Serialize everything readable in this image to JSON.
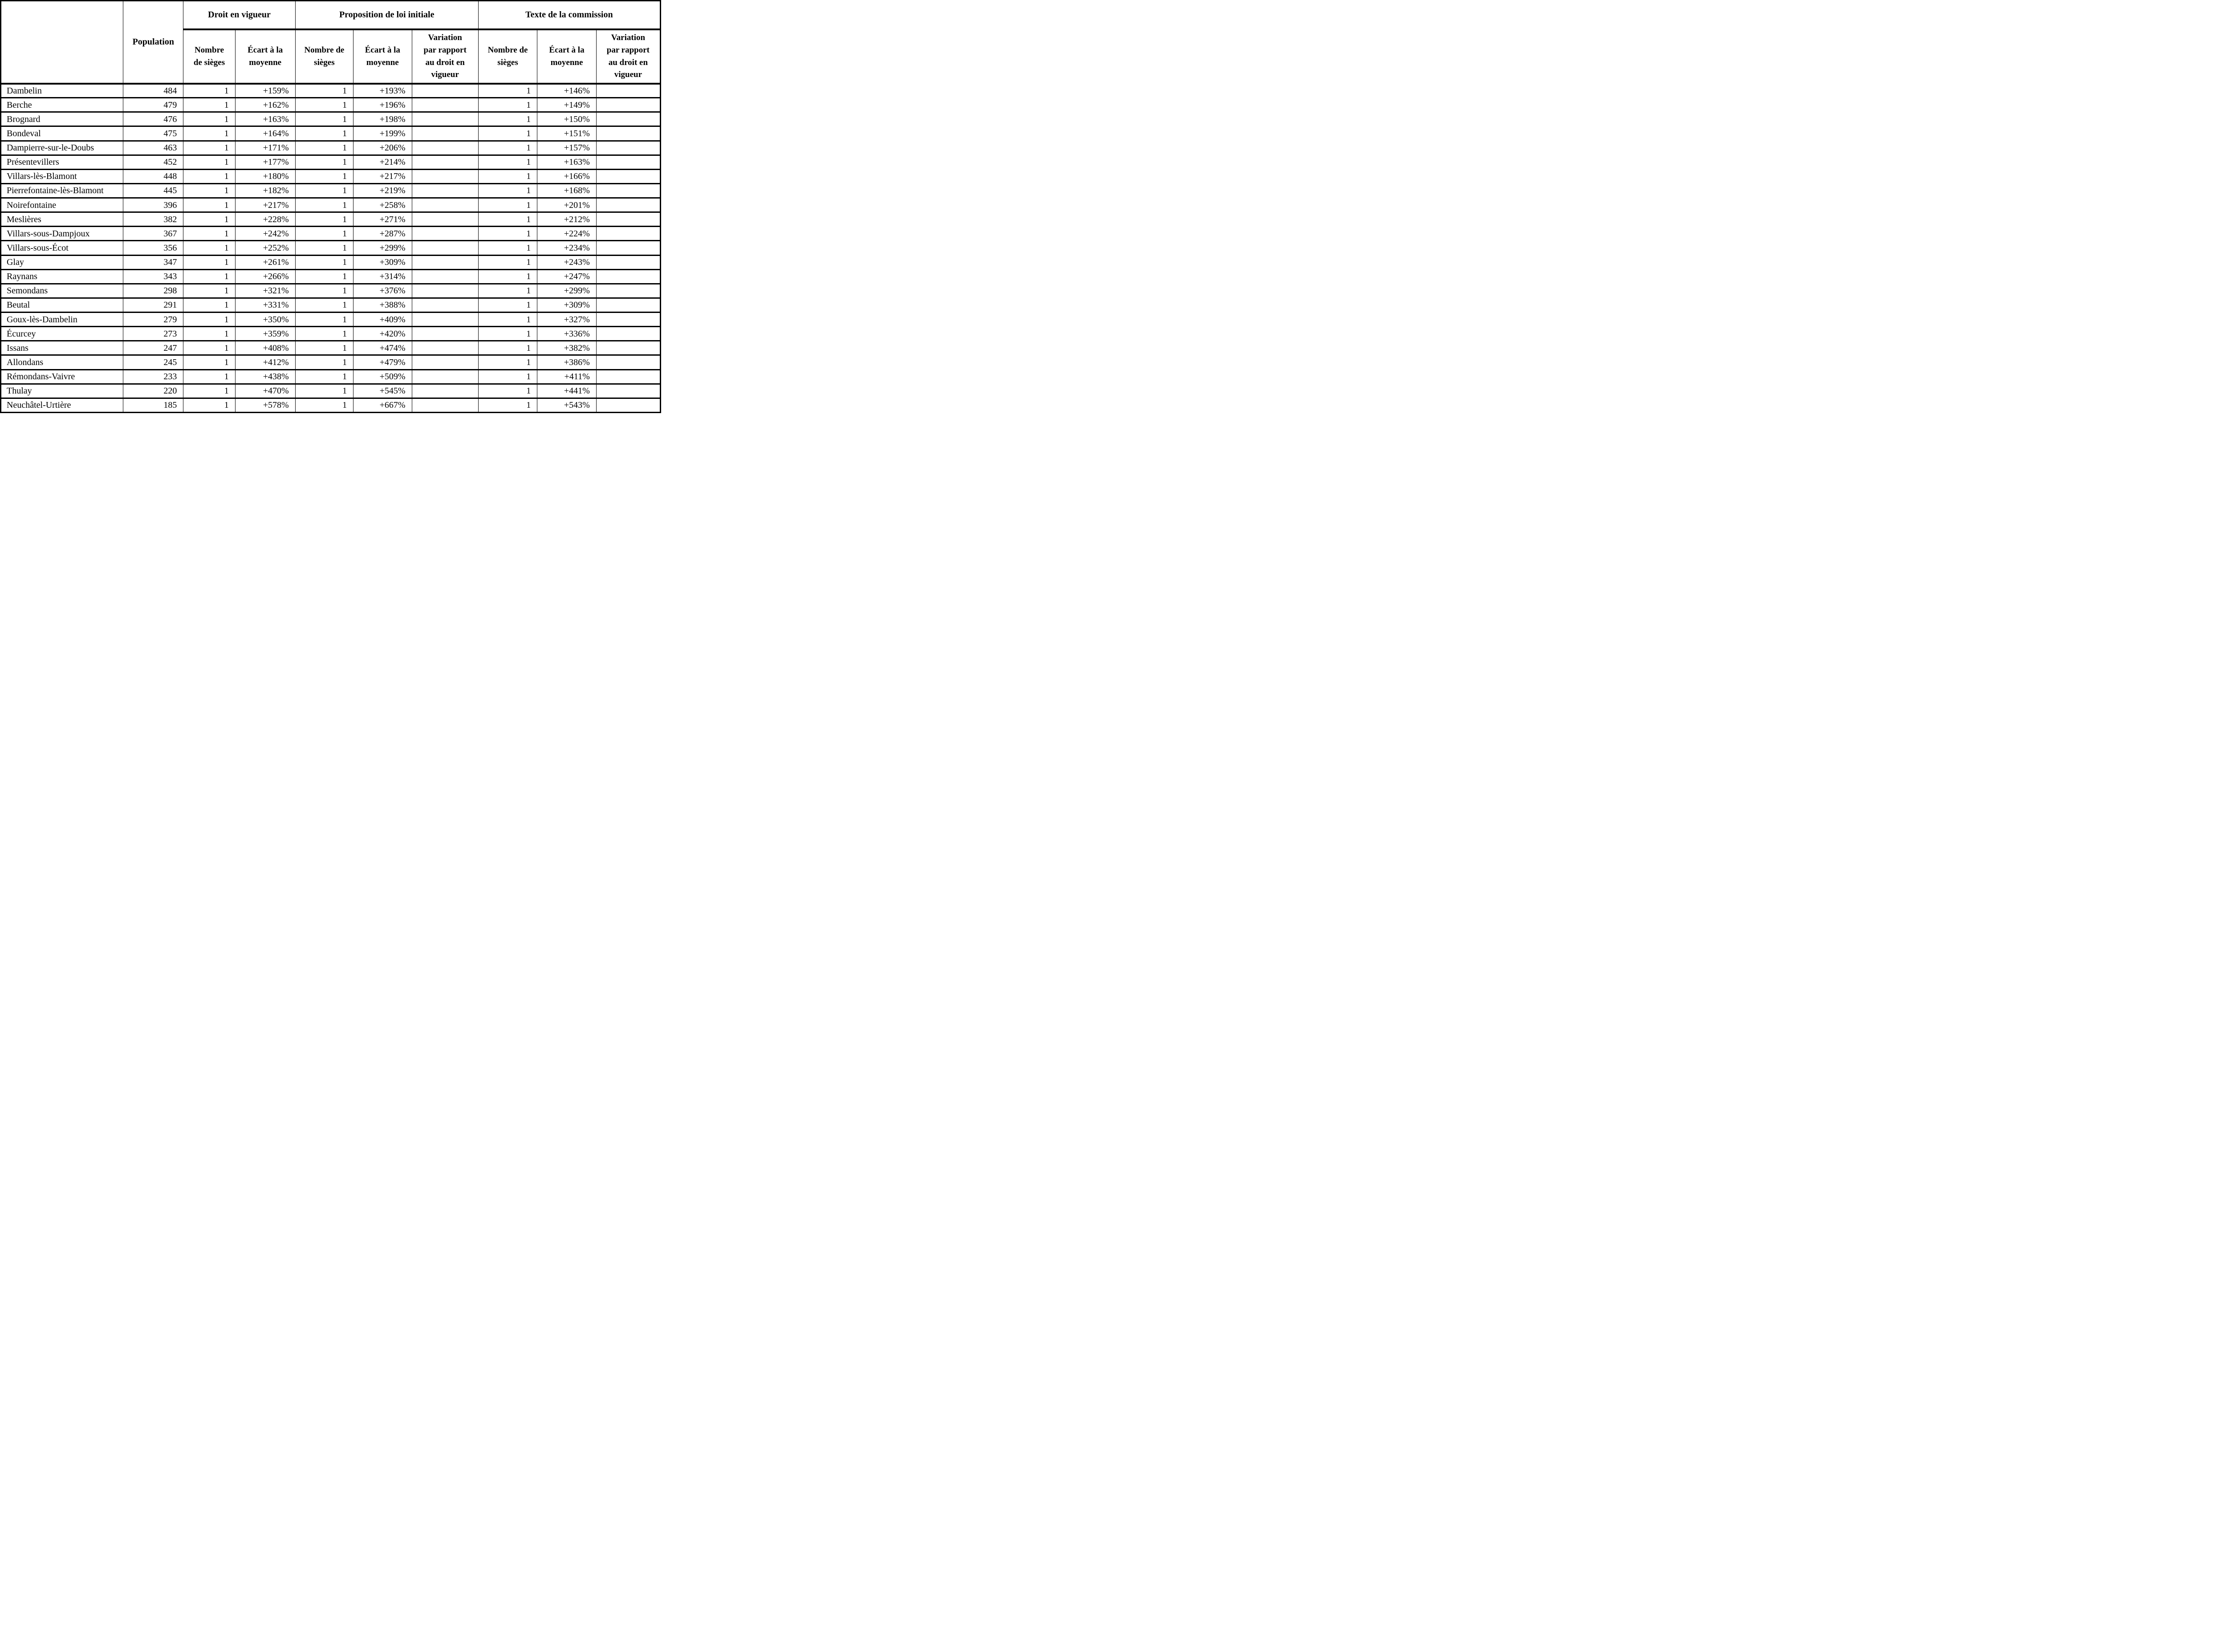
{
  "table": {
    "corner_label": "",
    "population_header": "Population",
    "groups": [
      {
        "label": "Droit en vigueur",
        "columns": [
          "Nombre\nde sièges",
          "Écart à la\nmoyenne"
        ]
      },
      {
        "label": "Proposition de loi initiale",
        "columns": [
          "Nombre de\nsièges",
          "Écart à la\nmoyenne",
          "Variation\npar rapport\nau droit en\nvigueur"
        ]
      },
      {
        "label": "Texte de la commission",
        "columns": [
          "Nombre de\nsièges",
          "Écart à la\nmoyenne",
          "Variation\npar rapport\nau droit en\nvigueur"
        ]
      }
    ],
    "rows": [
      {
        "name": "Dambelin",
        "population": "484",
        "droit_sieges": "1",
        "droit_ecart": "+159%",
        "prop_sieges": "1",
        "prop_ecart": "+193%",
        "prop_variation": "",
        "comm_sieges": "1",
        "comm_ecart": "+146%",
        "comm_variation": ""
      },
      {
        "name": "Berche",
        "population": "479",
        "droit_sieges": "1",
        "droit_ecart": "+162%",
        "prop_sieges": "1",
        "prop_ecart": "+196%",
        "prop_variation": "",
        "comm_sieges": "1",
        "comm_ecart": "+149%",
        "comm_variation": ""
      },
      {
        "name": "Brognard",
        "population": "476",
        "droit_sieges": "1",
        "droit_ecart": "+163%",
        "prop_sieges": "1",
        "prop_ecart": "+198%",
        "prop_variation": "",
        "comm_sieges": "1",
        "comm_ecart": "+150%",
        "comm_variation": ""
      },
      {
        "name": "Bondeval",
        "population": "475",
        "droit_sieges": "1",
        "droit_ecart": "+164%",
        "prop_sieges": "1",
        "prop_ecart": "+199%",
        "prop_variation": "",
        "comm_sieges": "1",
        "comm_ecart": "+151%",
        "comm_variation": ""
      },
      {
        "name": "Dampierre-sur-le-Doubs",
        "population": "463",
        "droit_sieges": "1",
        "droit_ecart": "+171%",
        "prop_sieges": "1",
        "prop_ecart": "+206%",
        "prop_variation": "",
        "comm_sieges": "1",
        "comm_ecart": "+157%",
        "comm_variation": ""
      },
      {
        "name": "Présentevillers",
        "population": "452",
        "droit_sieges": "1",
        "droit_ecart": "+177%",
        "prop_sieges": "1",
        "prop_ecart": "+214%",
        "prop_variation": "",
        "comm_sieges": "1",
        "comm_ecart": "+163%",
        "comm_variation": ""
      },
      {
        "name": "Villars-lès-Blamont",
        "population": "448",
        "droit_sieges": "1",
        "droit_ecart": "+180%",
        "prop_sieges": "1",
        "prop_ecart": "+217%",
        "prop_variation": "",
        "comm_sieges": "1",
        "comm_ecart": "+166%",
        "comm_variation": ""
      },
      {
        "name": "Pierrefontaine-lès-Blamont",
        "population": "445",
        "droit_sieges": "1",
        "droit_ecart": "+182%",
        "prop_sieges": "1",
        "prop_ecart": "+219%",
        "prop_variation": "",
        "comm_sieges": "1",
        "comm_ecart": "+168%",
        "comm_variation": ""
      },
      {
        "name": "Noirefontaine",
        "population": "396",
        "droit_sieges": "1",
        "droit_ecart": "+217%",
        "prop_sieges": "1",
        "prop_ecart": "+258%",
        "prop_variation": "",
        "comm_sieges": "1",
        "comm_ecart": "+201%",
        "comm_variation": ""
      },
      {
        "name": "Meslières",
        "population": "382",
        "droit_sieges": "1",
        "droit_ecart": "+228%",
        "prop_sieges": "1",
        "prop_ecart": "+271%",
        "prop_variation": "",
        "comm_sieges": "1",
        "comm_ecart": "+212%",
        "comm_variation": ""
      },
      {
        "name": "Villars-sous-Dampjoux",
        "population": "367",
        "droit_sieges": "1",
        "droit_ecart": "+242%",
        "prop_sieges": "1",
        "prop_ecart": "+287%",
        "prop_variation": "",
        "comm_sieges": "1",
        "comm_ecart": "+224%",
        "comm_variation": ""
      },
      {
        "name": "Villars-sous-Écot",
        "population": "356",
        "droit_sieges": "1",
        "droit_ecart": "+252%",
        "prop_sieges": "1",
        "prop_ecart": "+299%",
        "prop_variation": "",
        "comm_sieges": "1",
        "comm_ecart": "+234%",
        "comm_variation": ""
      },
      {
        "name": "Glay",
        "population": "347",
        "droit_sieges": "1",
        "droit_ecart": "+261%",
        "prop_sieges": "1",
        "prop_ecart": "+309%",
        "prop_variation": "",
        "comm_sieges": "1",
        "comm_ecart": "+243%",
        "comm_variation": ""
      },
      {
        "name": "Raynans",
        "population": "343",
        "droit_sieges": "1",
        "droit_ecart": "+266%",
        "prop_sieges": "1",
        "prop_ecart": "+314%",
        "prop_variation": "",
        "comm_sieges": "1",
        "comm_ecart": "+247%",
        "comm_variation": ""
      },
      {
        "name": "Semondans",
        "population": "298",
        "droit_sieges": "1",
        "droit_ecart": "+321%",
        "prop_sieges": "1",
        "prop_ecart": "+376%",
        "prop_variation": "",
        "comm_sieges": "1",
        "comm_ecart": "+299%",
        "comm_variation": ""
      },
      {
        "name": "Beutal",
        "population": "291",
        "droit_sieges": "1",
        "droit_ecart": "+331%",
        "prop_sieges": "1",
        "prop_ecart": "+388%",
        "prop_variation": "",
        "comm_sieges": "1",
        "comm_ecart": "+309%",
        "comm_variation": ""
      },
      {
        "name": "Goux-lès-Dambelin",
        "population": "279",
        "droit_sieges": "1",
        "droit_ecart": "+350%",
        "prop_sieges": "1",
        "prop_ecart": "+409%",
        "prop_variation": "",
        "comm_sieges": "1",
        "comm_ecart": "+327%",
        "comm_variation": ""
      },
      {
        "name": "Écurcey",
        "population": "273",
        "droit_sieges": "1",
        "droit_ecart": "+359%",
        "prop_sieges": "1",
        "prop_ecart": "+420%",
        "prop_variation": "",
        "comm_sieges": "1",
        "comm_ecart": "+336%",
        "comm_variation": ""
      },
      {
        "name": "Issans",
        "population": "247",
        "droit_sieges": "1",
        "droit_ecart": "+408%",
        "prop_sieges": "1",
        "prop_ecart": "+474%",
        "prop_variation": "",
        "comm_sieges": "1",
        "comm_ecart": "+382%",
        "comm_variation": ""
      },
      {
        "name": "Allondans",
        "population": "245",
        "droit_sieges": "1",
        "droit_ecart": "+412%",
        "prop_sieges": "1",
        "prop_ecart": "+479%",
        "prop_variation": "",
        "comm_sieges": "1",
        "comm_ecart": "+386%",
        "comm_variation": ""
      },
      {
        "name": "Rémondans-Vaivre",
        "population": "233",
        "droit_sieges": "1",
        "droit_ecart": "+438%",
        "prop_sieges": "1",
        "prop_ecart": "+509%",
        "prop_variation": "",
        "comm_sieges": "1",
        "comm_ecart": "+411%",
        "comm_variation": ""
      },
      {
        "name": "Thulay",
        "population": "220",
        "droit_sieges": "1",
        "droit_ecart": "+470%",
        "prop_sieges": "1",
        "prop_ecart": "+545%",
        "prop_variation": "",
        "comm_sieges": "1",
        "comm_ecart": "+441%",
        "comm_variation": ""
      },
      {
        "name": "Neuchâtel-Urtière",
        "population": "185",
        "droit_sieges": "1",
        "droit_ecart": "+578%",
        "prop_sieges": "1",
        "prop_ecart": "+667%",
        "prop_variation": "",
        "comm_sieges": "1",
        "comm_ecart": "+543%",
        "comm_variation": ""
      }
    ]
  }
}
